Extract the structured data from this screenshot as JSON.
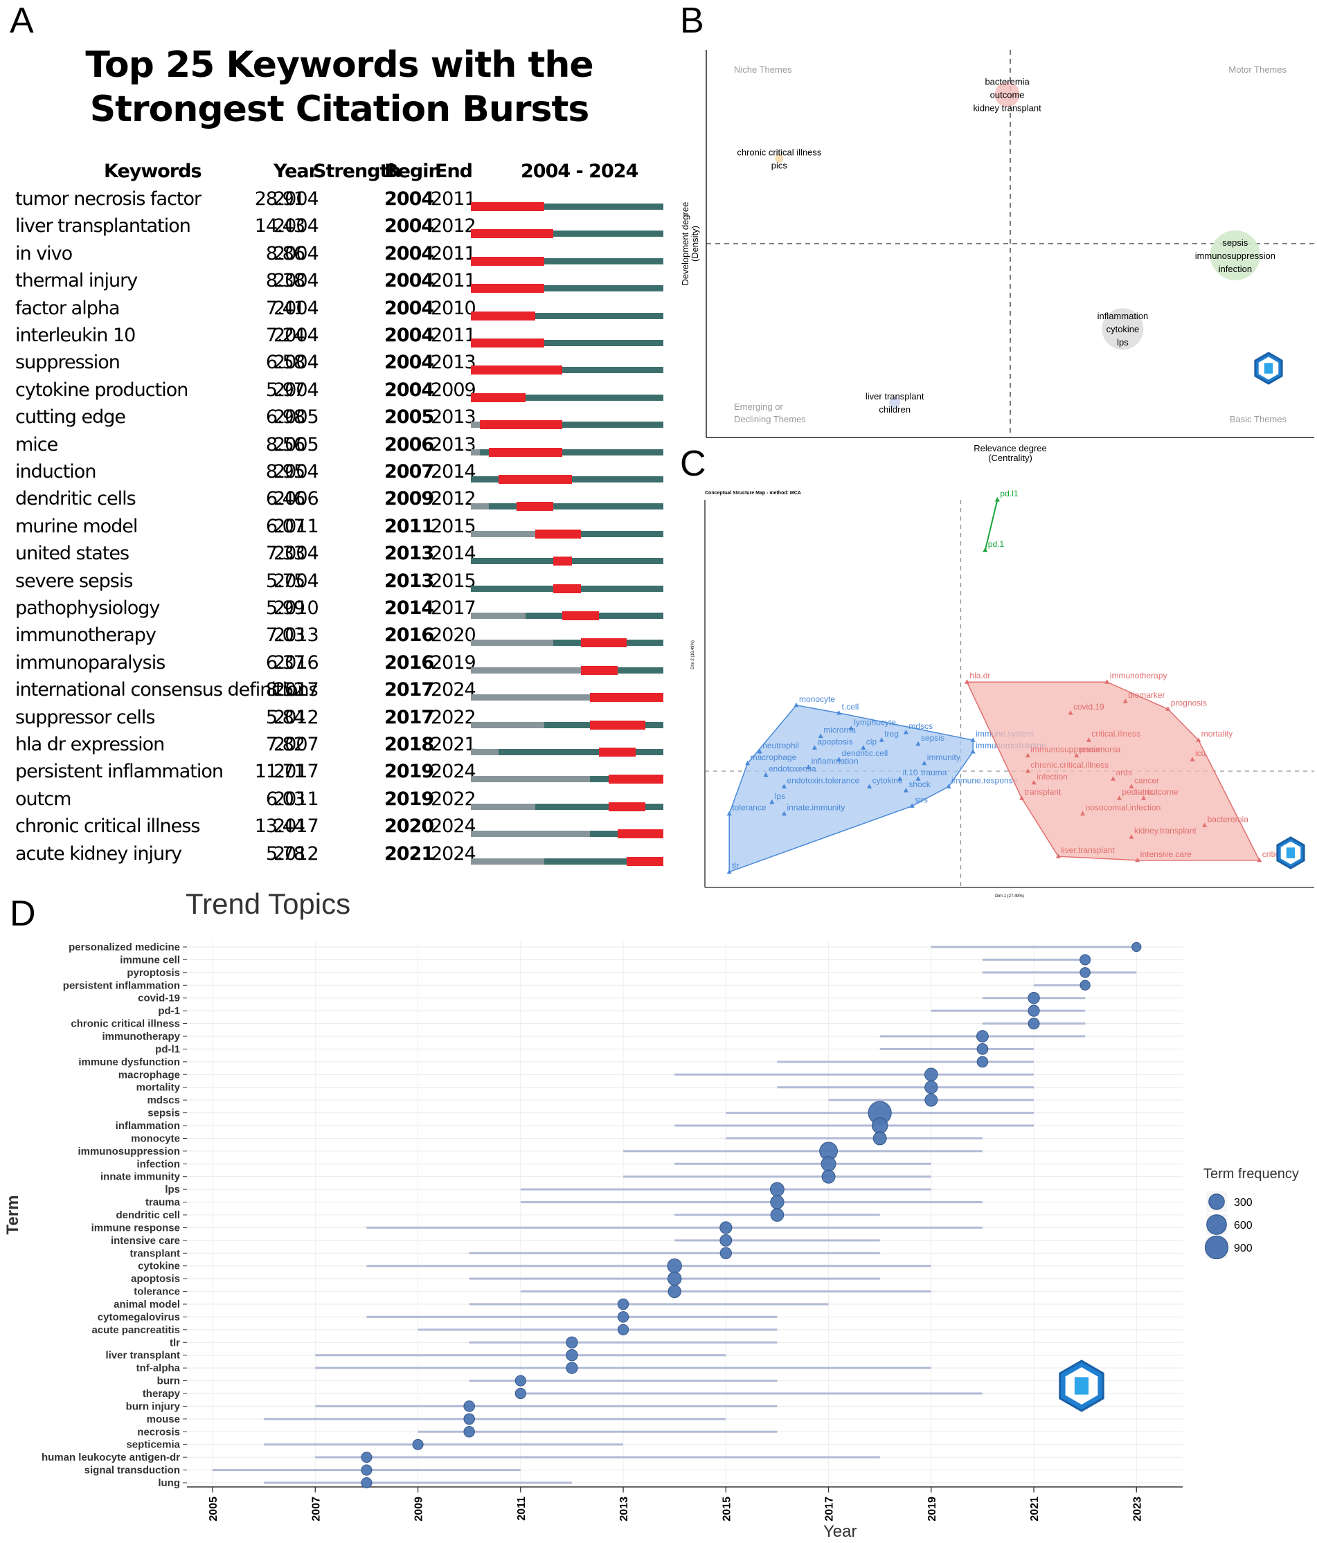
{
  "panel_letters": {
    "a": "A",
    "b": "B",
    "c": "C",
    "d": "D"
  },
  "chart_data": [
    {
      "type": "table",
      "id": "A",
      "title": "Top 25 Keywords with the Strongest Citation Bursts",
      "columns": [
        "Keywords",
        "Year",
        "Strength",
        "Begin",
        "End",
        "2004 - 2024"
      ],
      "range": [
        2004,
        2024
      ],
      "colors": {
        "burst": "#e8242a",
        "active": "#3c6f6c",
        "inactive": "#87959a"
      },
      "rows": [
        {
          "keyword": "tumor necrosis factor",
          "year": "2004",
          "strength": "28.91",
          "begin": "2004",
          "end": "2011"
        },
        {
          "keyword": "liver transplantation",
          "year": "2004",
          "strength": "14.43",
          "begin": "2004",
          "end": "2012"
        },
        {
          "keyword": "in vivo",
          "year": "2004",
          "strength": "8.86",
          "begin": "2004",
          "end": "2011"
        },
        {
          "keyword": "thermal injury",
          "year": "2004",
          "strength": "8.38",
          "begin": "2004",
          "end": "2011"
        },
        {
          "keyword": "factor alpha",
          "year": "2004",
          "strength": "7.41",
          "begin": "2004",
          "end": "2010"
        },
        {
          "keyword": "interleukin 10",
          "year": "2004",
          "strength": "7.24",
          "begin": "2004",
          "end": "2011"
        },
        {
          "keyword": "suppression",
          "year": "2004",
          "strength": "6.58",
          "begin": "2004",
          "end": "2013"
        },
        {
          "keyword": "cytokine production",
          "year": "2004",
          "strength": "5.97",
          "begin": "2004",
          "end": "2009"
        },
        {
          "keyword": "cutting edge",
          "year": "2005",
          "strength": "6.98",
          "begin": "2005",
          "end": "2013"
        },
        {
          "keyword": "mice",
          "year": "2005",
          "strength": "8.56",
          "begin": "2006",
          "end": "2013"
        },
        {
          "keyword": "induction",
          "year": "2004",
          "strength": "8.95",
          "begin": "2007",
          "end": "2014"
        },
        {
          "keyword": "dendritic cells",
          "year": "2006",
          "strength": "6.46",
          "begin": "2009",
          "end": "2012"
        },
        {
          "keyword": "murine model",
          "year": "2011",
          "strength": "6.07",
          "begin": "2011",
          "end": "2015"
        },
        {
          "keyword": "united states",
          "year": "2004",
          "strength": "7.33",
          "begin": "2013",
          "end": "2014"
        },
        {
          "keyword": "severe sepsis",
          "year": "2004",
          "strength": "5.75",
          "begin": "2013",
          "end": "2015"
        },
        {
          "keyword": "pathophysiology",
          "year": "2010",
          "strength": "5.99",
          "begin": "2014",
          "end": "2017"
        },
        {
          "keyword": "immunotherapy",
          "year": "2013",
          "strength": "7.03",
          "begin": "2016",
          "end": "2020"
        },
        {
          "keyword": "immunoparalysis",
          "year": "2016",
          "strength": "6.37",
          "begin": "2016",
          "end": "2019"
        },
        {
          "keyword": "international consensus definitions",
          "year": "2017",
          "strength": "8.52",
          "begin": "2017",
          "end": "2024"
        },
        {
          "keyword": "suppressor cells",
          "year": "2012",
          "strength": "5.84",
          "begin": "2017",
          "end": "2022"
        },
        {
          "keyword": "hla dr expression",
          "year": "2007",
          "strength": "7.82",
          "begin": "2018",
          "end": "2021"
        },
        {
          "keyword": "persistent inflammation",
          "year": "2017",
          "strength": "11.71",
          "begin": "2019",
          "end": "2024"
        },
        {
          "keyword": "outcm",
          "year": "2011",
          "strength": "6.03",
          "begin": "2019",
          "end": "2022"
        },
        {
          "keyword": "chronic critical illness",
          "year": "2017",
          "strength": "13.44",
          "begin": "2020",
          "end": "2024"
        },
        {
          "keyword": "acute kidney injury",
          "year": "2012",
          "strength": "5.78",
          "begin": "2021",
          "end": "2024"
        }
      ]
    },
    {
      "type": "scatter",
      "id": "B",
      "xlabel": "Relevance degree\n(Centrality)",
      "ylabel": "Development degree\n(Density)",
      "quadrants": {
        "top_left": "Niche Themes",
        "top_right": "Motor Themes",
        "bottom_left": "Emerging or\nDeclining Themes",
        "bottom_right": "Basic Themes"
      },
      "clusters": [
        {
          "labels": [
            "bacteremia",
            "outcome",
            "kidney transplant"
          ],
          "x": 0.495,
          "y": 0.885,
          "size": 18,
          "color": "#f4c0c0"
        },
        {
          "labels": [
            "chronic critical illness",
            "pics"
          ],
          "x": 0.12,
          "y": 0.72,
          "size": 6,
          "color": "#f7d7a8"
        },
        {
          "labels": [
            "sepsis",
            "immunosuppression",
            "infection"
          ],
          "x": 0.87,
          "y": 0.47,
          "size": 36,
          "color": "#cfe8c8"
        },
        {
          "labels": [
            "inflammation",
            "cytokine",
            "lps"
          ],
          "x": 0.685,
          "y": 0.28,
          "size": 30,
          "color": "#dcdcdc"
        },
        {
          "labels": [
            "liver transplant",
            "children"
          ],
          "x": 0.31,
          "y": 0.09,
          "size": 8,
          "color": "#c9d4ec"
        }
      ]
    },
    {
      "type": "scatter",
      "id": "C",
      "title": "Conceptual Structure Map - method: MCA",
      "xlabel": "Dim 1 (27.49%)",
      "ylabel": "Dim 2 (16.49%)",
      "groups": [
        {
          "name": "green",
          "color": "#18a53a",
          "fill": "none",
          "points": [
            {
              "label": "pd.l1",
              "x": 0.48,
              "y": 1.0
            },
            {
              "label": "pd.1",
              "x": 0.46,
              "y": 0.87
            }
          ]
        },
        {
          "name": "blue",
          "color": "#4a8ad8",
          "fill": "#a9c8f1",
          "points": [
            {
              "label": "monocyte",
              "x": 0.15,
              "y": 0.47
            },
            {
              "label": "t.cell",
              "x": 0.22,
              "y": 0.45
            },
            {
              "label": "lymphocyte",
              "x": 0.24,
              "y": 0.41
            },
            {
              "label": "microrna",
              "x": 0.19,
              "y": 0.39
            },
            {
              "label": "treg",
              "x": 0.29,
              "y": 0.38
            },
            {
              "label": "mdscs",
              "x": 0.33,
              "y": 0.4
            },
            {
              "label": "sepsis",
              "x": 0.35,
              "y": 0.37
            },
            {
              "label": "apoptosis",
              "x": 0.18,
              "y": 0.36
            },
            {
              "label": "neutrophil",
              "x": 0.09,
              "y": 0.35
            },
            {
              "label": "clp",
              "x": 0.26,
              "y": 0.36
            },
            {
              "label": "dendritic.cell",
              "x": 0.22,
              "y": 0.33
            },
            {
              "label": "macrophage",
              "x": 0.07,
              "y": 0.32
            },
            {
              "label": "inflammation",
              "x": 0.17,
              "y": 0.31
            },
            {
              "label": "immunity",
              "x": 0.36,
              "y": 0.32
            },
            {
              "label": "endotoxemia",
              "x": 0.1,
              "y": 0.29
            },
            {
              "label": "il.10",
              "x": 0.32,
              "y": 0.28
            },
            {
              "label": "trauma",
              "x": 0.35,
              "y": 0.28
            },
            {
              "label": "endotoxin.tolerance",
              "x": 0.13,
              "y": 0.26
            },
            {
              "label": "cytokine",
              "x": 0.27,
              "y": 0.26
            },
            {
              "label": "shock",
              "x": 0.33,
              "y": 0.25
            },
            {
              "label": "immune.response",
              "x": 0.4,
              "y": 0.26
            },
            {
              "label": "lps",
              "x": 0.11,
              "y": 0.22
            },
            {
              "label": "sirs",
              "x": 0.34,
              "y": 0.21
            },
            {
              "label": "innate.immunity",
              "x": 0.13,
              "y": 0.19
            },
            {
              "label": "tolerance",
              "x": 0.04,
              "y": 0.19
            },
            {
              "label": "immune.system",
              "x": 0.44,
              "y": 0.38
            },
            {
              "label": "immunomodulation",
              "x": 0.44,
              "y": 0.35
            },
            {
              "label": "tlr",
              "x": 0.04,
              "y": 0.04
            }
          ]
        },
        {
          "name": "red",
          "color": "#e07070",
          "fill": "#f5b8b3",
          "points": [
            {
              "label": "hla.dr",
              "x": 0.43,
              "y": 0.53
            },
            {
              "label": "immunotherapy",
              "x": 0.66,
              "y": 0.53
            },
            {
              "label": "biomarker",
              "x": 0.69,
              "y": 0.48
            },
            {
              "label": "prognosis",
              "x": 0.76,
              "y": 0.46
            },
            {
              "label": "covid.19",
              "x": 0.6,
              "y": 0.45
            },
            {
              "label": "critical.illness",
              "x": 0.63,
              "y": 0.38
            },
            {
              "label": "mortality",
              "x": 0.81,
              "y": 0.38
            },
            {
              "label": "immunosuppression",
              "x": 0.53,
              "y": 0.34
            },
            {
              "label": "pneumonia",
              "x": 0.61,
              "y": 0.34
            },
            {
              "label": "icu",
              "x": 0.8,
              "y": 0.33
            },
            {
              "label": "chronic.critical.illness",
              "x": 0.53,
              "y": 0.3
            },
            {
              "label": "ards",
              "x": 0.67,
              "y": 0.28
            },
            {
              "label": "infection",
              "x": 0.54,
              "y": 0.27
            },
            {
              "label": "cancer",
              "x": 0.7,
              "y": 0.26
            },
            {
              "label": "outcome",
              "x": 0.72,
              "y": 0.23
            },
            {
              "label": "pediatric",
              "x": 0.68,
              "y": 0.23
            },
            {
              "label": "transplant",
              "x": 0.52,
              "y": 0.23
            },
            {
              "label": "nosocomial.infection",
              "x": 0.62,
              "y": 0.19
            },
            {
              "label": "kidney.transplant",
              "x": 0.7,
              "y": 0.13
            },
            {
              "label": "bacteremia",
              "x": 0.82,
              "y": 0.16
            },
            {
              "label": "liver.transplant",
              "x": 0.58,
              "y": 0.08
            },
            {
              "label": "intensive.care",
              "x": 0.71,
              "y": 0.07
            },
            {
              "label": "critical.care",
              "x": 0.91,
              "y": 0.07
            }
          ]
        }
      ]
    },
    {
      "type": "scatter",
      "id": "D",
      "title": "Trend Topics",
      "xlabel": "Year",
      "ylabel": "Term",
      "xlim": [
        2004,
        2024
      ],
      "xticks": [
        "2005",
        "2007",
        "2009",
        "2011",
        "2013",
        "2015",
        "2017",
        "2019",
        "2021",
        "2023"
      ],
      "legend_title": "Term frequency",
      "legend": [
        {
          "label": "300",
          "value": 300
        },
        {
          "label": "600",
          "value": 600
        },
        {
          "label": "900",
          "value": 900
        }
      ],
      "terms": [
        {
          "term": "personalized medicine",
          "q1": 2019,
          "median": 2023,
          "q3": 2023,
          "freq": 40
        },
        {
          "term": "immune cell",
          "q1": 2020,
          "median": 2022,
          "q3": 2022,
          "freq": 70
        },
        {
          "term": "pyroptosis",
          "q1": 2020,
          "median": 2022,
          "q3": 2023,
          "freq": 60
        },
        {
          "term": "persistent inflammation",
          "q1": 2021,
          "median": 2022,
          "q3": 2022,
          "freq": 55
        },
        {
          "term": "covid-19",
          "q1": 2020,
          "median": 2021,
          "q3": 2022,
          "freq": 100
        },
        {
          "term": "pd-1",
          "q1": 2019,
          "median": 2021,
          "q3": 2022,
          "freq": 95
        },
        {
          "term": "chronic critical illness",
          "q1": 2020,
          "median": 2021,
          "q3": 2022,
          "freq": 90
        },
        {
          "term": "immunotherapy",
          "q1": 2018,
          "median": 2020,
          "q3": 2022,
          "freq": 110
        },
        {
          "term": "pd-l1",
          "q1": 2018,
          "median": 2020,
          "q3": 2021,
          "freq": 85
        },
        {
          "term": "immune dysfunction",
          "q1": 2016,
          "median": 2020,
          "q3": 2021,
          "freq": 80
        },
        {
          "term": "macrophage",
          "q1": 2014,
          "median": 2019,
          "q3": 2021,
          "freq": 160
        },
        {
          "term": "mortality",
          "q1": 2016,
          "median": 2019,
          "q3": 2021,
          "freq": 150
        },
        {
          "term": "mdscs",
          "q1": 2017,
          "median": 2019,
          "q3": 2021,
          "freq": 140
        },
        {
          "term": "sepsis",
          "q1": 2015,
          "median": 2018,
          "q3": 2021,
          "freq": 900
        },
        {
          "term": "inflammation",
          "q1": 2014,
          "median": 2018,
          "q3": 2021,
          "freq": 300
        },
        {
          "term": "monocyte",
          "q1": 2015,
          "median": 2018,
          "q3": 2020,
          "freq": 170
        },
        {
          "term": "immunosuppression",
          "q1": 2013,
          "median": 2017,
          "q3": 2020,
          "freq": 450
        },
        {
          "term": "infection",
          "q1": 2014,
          "median": 2017,
          "q3": 2019,
          "freq": 240
        },
        {
          "term": "innate immunity",
          "q1": 2013,
          "median": 2017,
          "q3": 2019,
          "freq": 170
        },
        {
          "term": "lps",
          "q1": 2011,
          "median": 2016,
          "q3": 2019,
          "freq": 200
        },
        {
          "term": "trauma",
          "q1": 2011,
          "median": 2016,
          "q3": 2020,
          "freq": 180
        },
        {
          "term": "dendritic cell",
          "q1": 2014,
          "median": 2016,
          "q3": 2018,
          "freq": 160
        },
        {
          "term": "immune response",
          "q1": 2008,
          "median": 2015,
          "q3": 2020,
          "freq": 120
        },
        {
          "term": "intensive care",
          "q1": 2014,
          "median": 2015,
          "q3": 2018,
          "freq": 110
        },
        {
          "term": "transplant",
          "q1": 2010,
          "median": 2015,
          "q3": 2018,
          "freq": 100
        },
        {
          "term": "cytokine",
          "q1": 2008,
          "median": 2014,
          "q3": 2019,
          "freq": 220
        },
        {
          "term": "apoptosis",
          "q1": 2010,
          "median": 2014,
          "q3": 2018,
          "freq": 190
        },
        {
          "term": "tolerance",
          "q1": 2011,
          "median": 2014,
          "q3": 2019,
          "freq": 150
        },
        {
          "term": "animal model",
          "q1": 2010,
          "median": 2013,
          "q3": 2017,
          "freq": 80
        },
        {
          "term": "cytomegalovirus",
          "q1": 2008,
          "median": 2013,
          "q3": 2016,
          "freq": 80
        },
        {
          "term": "acute pancreatitis",
          "q1": 2009,
          "median": 2013,
          "q3": 2016,
          "freq": 75
        },
        {
          "term": "tlr",
          "q1": 2010,
          "median": 2012,
          "q3": 2016,
          "freq": 100
        },
        {
          "term": "liver transplant",
          "q1": 2007,
          "median": 2012,
          "q3": 2015,
          "freq": 100
        },
        {
          "term": "tnf-alpha",
          "q1": 2007,
          "median": 2012,
          "q3": 2019,
          "freq": 100
        },
        {
          "term": "burn",
          "q1": 2010,
          "median": 2011,
          "q3": 2016,
          "freq": 75
        },
        {
          "term": "therapy",
          "q1": 2011,
          "median": 2011,
          "q3": 2020,
          "freq": 75
        },
        {
          "term": "burn injury",
          "q1": 2007,
          "median": 2010,
          "q3": 2016,
          "freq": 80
        },
        {
          "term": "mouse",
          "q1": 2006,
          "median": 2010,
          "q3": 2015,
          "freq": 80
        },
        {
          "term": "necrosis",
          "q1": 2009,
          "median": 2010,
          "q3": 2016,
          "freq": 80
        },
        {
          "term": "septicemia",
          "q1": 2006,
          "median": 2009,
          "q3": 2013,
          "freq": 70
        },
        {
          "term": "human leukocyte antigen-dr",
          "q1": 2007,
          "median": 2008,
          "q3": 2018,
          "freq": 70
        },
        {
          "term": "signal transduction",
          "q1": 2005,
          "median": 2008,
          "q3": 2011,
          "freq": 70
        },
        {
          "term": "lung",
          "q1": 2006,
          "median": 2008,
          "q3": 2012,
          "freq": 70
        }
      ]
    }
  ]
}
